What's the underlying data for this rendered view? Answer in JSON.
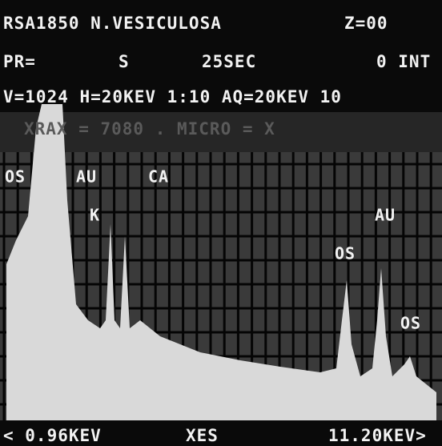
{
  "header": {
    "sample": "RSA1850 N.VESICULOSA",
    "z": "Z=00",
    "pr": "PR=",
    "mode": "S",
    "time": "25SEC",
    "integration": "0 INT",
    "settings": "V=1024 H=20KEV 1:10 AQ=20KEV 10",
    "faint_line": "XRAX = 7080 . MICRO = X"
  },
  "peak_labels": [
    "OS",
    "AU",
    "CA",
    "K",
    "AU",
    "OS",
    "OS"
  ],
  "footer": {
    "left": "< 0.96KEV",
    "center": "XES",
    "right": "11.20KEV>"
  }
}
